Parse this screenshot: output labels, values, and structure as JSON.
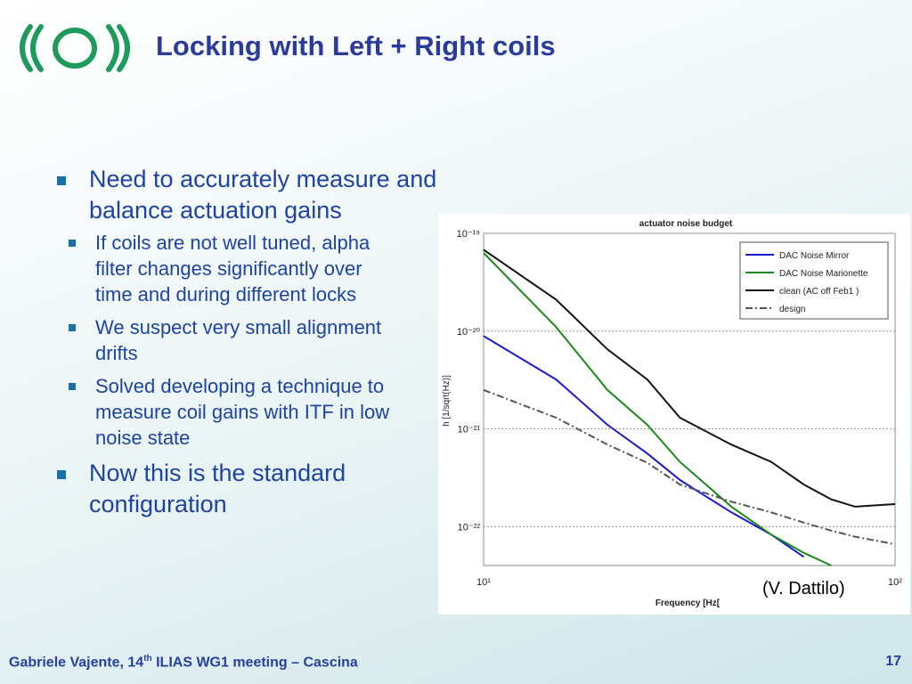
{
  "header": {
    "title": "Locking with Left + Right coils"
  },
  "bullets": [
    {
      "text": "Need to accurately measure and balance actuation gains",
      "sub": [
        "If coils are not well tuned, alpha filter changes significantly over time and during different locks",
        "We suspect very small alignment drifts",
        "Solved developing a technique to measure coil gains with ITF in low noise state"
      ]
    },
    {
      "text": "Now this is the standard configuration"
    }
  ],
  "credit": "(V. Dattilo)",
  "footer": {
    "parts": [
      "Gabriele Vajente, 14",
      "th",
      " ILIAS WG1 meeting – Cascina"
    ],
    "page": "17"
  },
  "chart_data": {
    "type": "line",
    "title": "actuator noise budget",
    "x_label": "Frequency [Hz[",
    "y_label": "h [1/sqrt(Hz)]",
    "log_x": true,
    "log_y": true,
    "grid": true,
    "legend": "top-right",
    "xlim": [
      10,
      100
    ],
    "xticks": [
      {
        "value": 10,
        "label": "10¹"
      },
      {
        "value": 100,
        "label": "10²"
      }
    ],
    "ylim": [
      4e-23,
      1e-19
    ],
    "yticks": [
      {
        "value": 1e-19,
        "label": "10⁻¹⁹"
      },
      {
        "value": 1e-20,
        "label": "10⁻²⁰"
      },
      {
        "value": 1e-21,
        "label": "10⁻²¹"
      },
      {
        "value": 1e-22,
        "label": "10⁻²²"
      }
    ],
    "x": [
      10,
      15,
      20,
      25,
      30,
      40,
      50,
      60,
      70,
      80,
      100
    ],
    "series": [
      {
        "name": "DAC Noise Mirror",
        "color": "#1a1acc",
        "dash": "none",
        "values": [
          8.9e-21,
          3.2e-21,
          1.1e-21,
          5.6e-22,
          3e-22,
          1.4e-22,
          8.3e-23,
          4.9e-23,
          null,
          null,
          null
        ]
      },
      {
        "name": "DAC Noise Marionette",
        "color": "#1a8a1a",
        "dash": "none",
        "values": [
          6.3e-20,
          1.1e-20,
          2.5e-21,
          1.1e-21,
          4.6e-22,
          1.6e-22,
          8.3e-23,
          5.4e-23,
          4e-23,
          null,
          null
        ]
      },
      {
        "name": "clean (AC off Feb1 )",
        "color": "#111111",
        "dash": "none",
        "values": [
          6.8e-20,
          2.1e-20,
          6.5e-21,
          3.2e-21,
          1.3e-21,
          6.9e-22,
          4.6e-22,
          2.7e-22,
          1.9e-22,
          1.6e-22,
          1.7e-22
        ]
      },
      {
        "name": "design",
        "color": "#555555",
        "dash": "8 3 2 3",
        "values": [
          2.5e-21,
          1.3e-21,
          6.9e-22,
          4.5e-22,
          2.7e-22,
          1.8e-22,
          1.4e-22,
          1.1e-22,
          9.1e-23,
          7.9e-23,
          6.6e-23
        ]
      }
    ]
  }
}
